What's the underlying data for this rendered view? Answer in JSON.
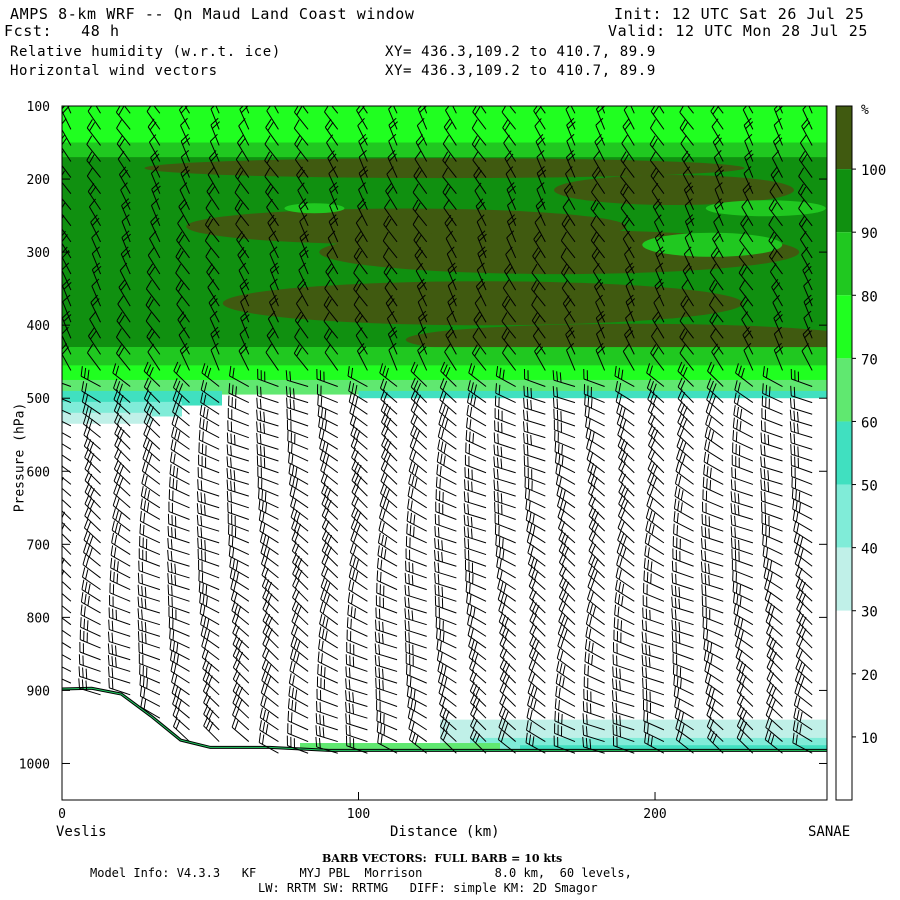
{
  "header": {
    "title": "AMPS 8-km WRF -- Qn Maud Land Coast window",
    "fcst_label": "Fcst:",
    "fcst_value": "48 h",
    "init": "Init: 12 UTC Sat 26 Jul 25",
    "valid": "Valid: 12 UTC Mon 28 Jul 25",
    "field1": "Relative humidity (w.r.t. ice)",
    "field2": "Horizontal wind vectors",
    "xy1": "XY= 436.3,109.2 to 410.7, 89.9",
    "xy2": "XY= 436.3,109.2 to 410.7, 89.9"
  },
  "footer": {
    "barb_note": "BARB VECTORS:  FULL BARB = 10 kts",
    "model_info": "Model Info: V4.3.3   KF      MYJ PBL  Morrison          8.0 km,  60 levels,",
    "model_info2": "LW: RRTM SW: RRTMG   DIFF: simple KM: 2D Smagor"
  },
  "chart_data": {
    "type": "heatmap",
    "title": "Relative humidity (w.r.t. ice)",
    "xlabel": "Distance (km)",
    "ylabel": "Pressure (hPa)",
    "x_start_label": "Veslis",
    "x_end_label": "SANAE",
    "xlim": [
      0,
      258
    ],
    "ylim": [
      100,
      1050
    ],
    "x_ticks": [
      0,
      100,
      200
    ],
    "y_ticks": [
      100,
      200,
      300,
      400,
      500,
      600,
      700,
      800,
      900,
      1000
    ],
    "colorbar": {
      "unit": "%",
      "labels": [
        "100",
        "90",
        "80",
        "70",
        "60",
        "50",
        "40",
        "30",
        "20",
        "10"
      ],
      "levels": [
        0,
        30,
        40,
        50,
        60,
        70,
        80,
        90,
        100,
        110
      ],
      "colors": [
        "#ffffff",
        "#c0f0e8",
        "#80ecd8",
        "#40e0c0",
        "#60e870",
        "#20ff20",
        "#20c820",
        "#109010",
        "#405a10"
      ]
    },
    "terrain_pressure": [
      {
        "x": 0,
        "p": 898
      },
      {
        "x": 10,
        "p": 897
      },
      {
        "x": 20,
        "p": 905
      },
      {
        "x": 30,
        "p": 935
      },
      {
        "x": 40,
        "p": 968
      },
      {
        "x": 50,
        "p": 978
      },
      {
        "x": 70,
        "p": 978
      },
      {
        "x": 90,
        "p": 982
      },
      {
        "x": 150,
        "p": 982
      },
      {
        "x": 258,
        "p": 982
      }
    ],
    "rh_bands_description_values": {
      "upper_moist_layer_hPa": [
        100,
        500
      ],
      "dry_layer_hPa": [
        510,
        930
      ],
      "surface_moist_layer_hPa": [
        940,
        982
      ]
    }
  }
}
